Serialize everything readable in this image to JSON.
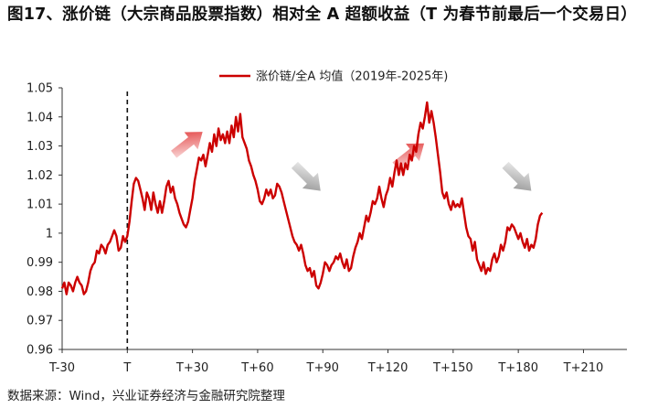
{
  "figure": {
    "title": "图17、涨价链（大宗商品股票指数）相对全 A 超额收益（T 为春节前最后一个交易日）",
    "source": "数据来源：Wind，兴业证券经济与金融研究院整理"
  },
  "colors": {
    "series": "#cc0000",
    "axis": "#333333",
    "text": "#222222",
    "arrow_up": "#e03030",
    "arrow_down": "#8c8c8c"
  },
  "chart_data": {
    "type": "line",
    "title": "",
    "xlabel": "",
    "ylabel": "",
    "xlim": [
      -30,
      230
    ],
    "ylim": [
      0.96,
      1.05
    ],
    "grid": false,
    "legend_position": "top-center",
    "x_ticks": [
      -30,
      0,
      30,
      60,
      90,
      120,
      150,
      180,
      210
    ],
    "x_tick_labels": [
      "T-30",
      "T",
      "T+30",
      "T+60",
      "T+90",
      "T+120",
      "T+150",
      "T+180",
      "T+210"
    ],
    "y_ticks": [
      0.96,
      0.97,
      0.98,
      0.99,
      1,
      1.01,
      1.02,
      1.03,
      1.04,
      1.05
    ],
    "y_tick_labels": [
      "0.96",
      "0.97",
      "0.98",
      "0.99",
      "1",
      "1.01",
      "1.02",
      "1.03",
      "1.04",
      "1.05"
    ],
    "reference_line": {
      "x": 0,
      "style": "dashed"
    },
    "annotations": [
      {
        "type": "arrow",
        "direction": "up",
        "x": 28,
        "y": 1.031
      },
      {
        "type": "arrow",
        "direction": "down",
        "x": 83,
        "y": 1.019
      },
      {
        "type": "arrow",
        "direction": "up",
        "x": 130,
        "y": 1.027
      },
      {
        "type": "arrow",
        "direction": "down",
        "x": 180,
        "y": 1.019
      }
    ],
    "series": [
      {
        "name": "涨价链/全A 均值（2019年-2025年)",
        "points": [
          [
            -30,
            0.981
          ],
          [
            -29,
            0.983
          ],
          [
            -28,
            0.979
          ],
          [
            -27,
            0.983
          ],
          [
            -26,
            0.982
          ],
          [
            -25,
            0.98
          ],
          [
            -24,
            0.983
          ],
          [
            -23,
            0.985
          ],
          [
            -22,
            0.983
          ],
          [
            -21,
            0.982
          ],
          [
            -20,
            0.979
          ],
          [
            -19,
            0.98
          ],
          [
            -18,
            0.983
          ],
          [
            -17,
            0.987
          ],
          [
            -16,
            0.989
          ],
          [
            -15,
            0.99
          ],
          [
            -14,
            0.994
          ],
          [
            -13,
            0.993
          ],
          [
            -12,
            0.996
          ],
          [
            -11,
            0.995
          ],
          [
            -10,
            0.993
          ],
          [
            -9,
            0.996
          ],
          [
            -8,
            0.997
          ],
          [
            -7,
            0.999
          ],
          [
            -6,
            1.001
          ],
          [
            -5,
            0.999
          ],
          [
            -4,
            0.994
          ],
          [
            -3,
            0.995
          ],
          [
            -2,
            0.999
          ],
          [
            -1,
            0.997
          ],
          [
            0,
            0.999
          ],
          [
            1,
            1.004
          ],
          [
            2,
            1.011
          ],
          [
            3,
            1.017
          ],
          [
            4,
            1.019
          ],
          [
            5,
            1.018
          ],
          [
            6,
            1.015
          ],
          [
            7,
            1.012
          ],
          [
            8,
            1.008
          ],
          [
            9,
            1.014
          ],
          [
            10,
            1.012
          ],
          [
            11,
            1.008
          ],
          [
            12,
            1.014
          ],
          [
            13,
            1.01
          ],
          [
            14,
            1.007
          ],
          [
            15,
            1.011
          ],
          [
            16,
            1.007
          ],
          [
            17,
            1.011
          ],
          [
            18,
            1.016
          ],
          [
            19,
            1.018
          ],
          [
            20,
            1.014
          ],
          [
            21,
            1.016
          ],
          [
            22,
            1.012
          ],
          [
            23,
            1.01
          ],
          [
            24,
            1.007
          ],
          [
            25,
            1.005
          ],
          [
            26,
            1.003
          ],
          [
            27,
            1.002
          ],
          [
            28,
            1.004
          ],
          [
            29,
            1.008
          ],
          [
            30,
            1.012
          ],
          [
            31,
            1.018
          ],
          [
            32,
            1.022
          ],
          [
            33,
            1.026
          ],
          [
            34,
            1.025
          ],
          [
            35,
            1.027
          ],
          [
            36,
            1.023
          ],
          [
            37,
            1.027
          ],
          [
            38,
            1.031
          ],
          [
            39,
            1.028
          ],
          [
            40,
            1.034
          ],
          [
            41,
            1.03
          ],
          [
            42,
            1.036
          ],
          [
            43,
            1.032
          ],
          [
            44,
            1.034
          ],
          [
            45,
            1.031
          ],
          [
            46,
            1.035
          ],
          [
            47,
            1.031
          ],
          [
            48,
            1.037
          ],
          [
            49,
            1.033
          ],
          [
            50,
            1.04
          ],
          [
            51,
            1.035
          ],
          [
            52,
            1.041
          ],
          [
            53,
            1.033
          ],
          [
            54,
            1.031
          ],
          [
            55,
            1.029
          ],
          [
            56,
            1.025
          ],
          [
            57,
            1.023
          ],
          [
            58,
            1.02
          ],
          [
            59,
            1.018
          ],
          [
            60,
            1.015
          ],
          [
            61,
            1.011
          ],
          [
            62,
            1.01
          ],
          [
            63,
            1.012
          ],
          [
            64,
            1.015
          ],
          [
            65,
            1.013
          ],
          [
            66,
            1.015
          ],
          [
            67,
            1.012
          ],
          [
            68,
            1.013
          ],
          [
            69,
            1.017
          ],
          [
            70,
            1.016
          ],
          [
            71,
            1.014
          ],
          [
            72,
            1.011
          ],
          [
            73,
            1.008
          ],
          [
            74,
            1.005
          ],
          [
            75,
            1.002
          ],
          [
            76,
            0.999
          ],
          [
            77,
            0.997
          ],
          [
            78,
            0.996
          ],
          [
            79,
            0.994
          ],
          [
            80,
            0.996
          ],
          [
            81,
            0.993
          ],
          [
            82,
            0.989
          ],
          [
            83,
            0.987
          ],
          [
            84,
            0.988
          ],
          [
            85,
            0.985
          ],
          [
            86,
            0.987
          ],
          [
            87,
            0.982
          ],
          [
            88,
            0.981
          ],
          [
            89,
            0.983
          ],
          [
            90,
            0.986
          ],
          [
            91,
            0.99
          ],
          [
            92,
            0.989
          ],
          [
            93,
            0.987
          ],
          [
            94,
            0.989
          ],
          [
            95,
            0.99
          ],
          [
            96,
            0.992
          ],
          [
            97,
            0.991
          ],
          [
            98,
            0.993
          ],
          [
            99,
            0.99
          ],
          [
            100,
            0.988
          ],
          [
            101,
            0.991
          ],
          [
            102,
            0.987
          ],
          [
            103,
            0.988
          ],
          [
            104,
            0.992
          ],
          [
            105,
            0.995
          ],
          [
            106,
            0.997
          ],
          [
            107,
            1.0
          ],
          [
            108,
            0.998
          ],
          [
            109,
            1.002
          ],
          [
            110,
            1.006
          ],
          [
            111,
            1.004
          ],
          [
            112,
            1.007
          ],
          [
            113,
            1.011
          ],
          [
            114,
            1.01
          ],
          [
            115,
            1.012
          ],
          [
            116,
            1.016
          ],
          [
            117,
            1.012
          ],
          [
            118,
            1.009
          ],
          [
            119,
            1.013
          ],
          [
            120,
            1.015
          ],
          [
            121,
            1.019
          ],
          [
            122,
            1.016
          ],
          [
            123,
            1.021
          ],
          [
            124,
            1.025
          ],
          [
            125,
            1.02
          ],
          [
            126,
            1.024
          ],
          [
            127,
            1.02
          ],
          [
            128,
            1.024
          ],
          [
            129,
            1.022
          ],
          [
            130,
            1.027
          ],
          [
            131,
            1.025
          ],
          [
            132,
            1.03
          ],
          [
            133,
            1.028
          ],
          [
            134,
            1.034
          ],
          [
            135,
            1.038
          ],
          [
            136,
            1.036
          ],
          [
            137,
            1.04
          ],
          [
            138,
            1.045
          ],
          [
            139,
            1.038
          ],
          [
            140,
            1.042
          ],
          [
            141,
            1.038
          ],
          [
            142,
            1.033
          ],
          [
            143,
            1.027
          ],
          [
            144,
            1.021
          ],
          [
            145,
            1.014
          ],
          [
            146,
            1.012
          ],
          [
            147,
            1.014
          ],
          [
            148,
            1.01
          ],
          [
            149,
            1.008
          ],
          [
            150,
            1.011
          ],
          [
            151,
            1.009
          ],
          [
            152,
            1.01
          ],
          [
            153,
            1.009
          ],
          [
            154,
            1.012
          ],
          [
            155,
            1.007
          ],
          [
            156,
            1.002
          ],
          [
            157,
            0.999
          ],
          [
            158,
            0.998
          ],
          [
            159,
            0.994
          ],
          [
            160,
            0.997
          ],
          [
            161,
            0.991
          ],
          [
            162,
            0.989
          ],
          [
            163,
            0.987
          ],
          [
            164,
            0.99
          ],
          [
            165,
            0.986
          ],
          [
            166,
            0.988
          ],
          [
            167,
            0.987
          ],
          [
            168,
            0.991
          ],
          [
            169,
            0.993
          ],
          [
            170,
            0.99
          ],
          [
            171,
            0.992
          ],
          [
            172,
            0.996
          ],
          [
            173,
            0.994
          ],
          [
            174,
            0.997
          ],
          [
            175,
            1.002
          ],
          [
            176,
            1.001
          ],
          [
            177,
            1.003
          ],
          [
            178,
            1.002
          ],
          [
            179,
            1.0
          ],
          [
            180,
            0.998
          ],
          [
            181,
            1.0
          ],
          [
            182,
            0.997
          ],
          [
            183,
            0.995
          ],
          [
            184,
            0.998
          ],
          [
            185,
            0.994
          ],
          [
            186,
            0.996
          ],
          [
            187,
            0.995
          ],
          [
            188,
            0.998
          ],
          [
            189,
            1.003
          ],
          [
            190,
            1.006
          ],
          [
            191,
            1.007
          ]
        ]
      }
    ]
  }
}
